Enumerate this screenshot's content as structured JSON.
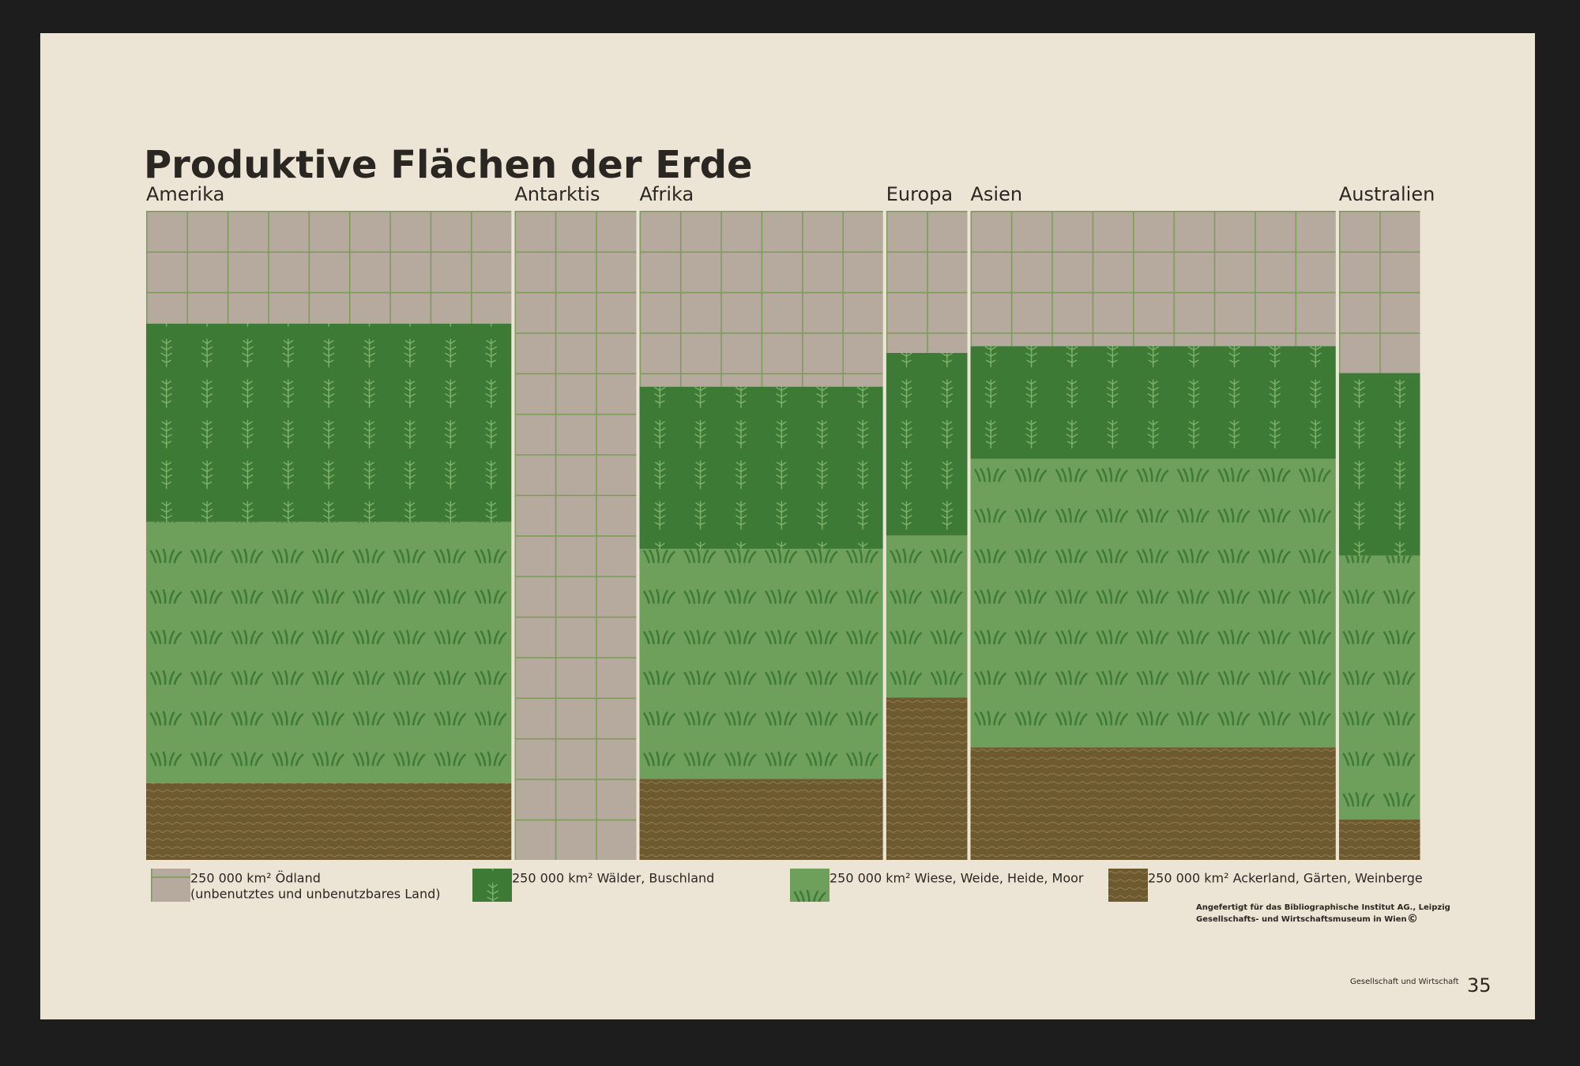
{
  "chart_data": {
    "type": "variwide",
    "title": "Produktive Flächen der Erde",
    "categories": [
      "Amerika",
      "Antarktis",
      "Afrika",
      "Europa",
      "Asien",
      "Australien"
    ],
    "widths": [
      9,
      3,
      6,
      2,
      9,
      2
    ],
    "series": [
      {
        "name": "250 000 km² Ödland",
        "sub": "(unbenutztes und unbenutzbares Land)",
        "color": "#b5aa9d",
        "values": [
          25,
          48,
          26,
          7,
          30,
          8
        ]
      },
      {
        "name": "250 000 km² Wälder, Buschland",
        "color": "#3c7a35",
        "values": [
          44,
          0,
          24,
          9,
          25,
          9
        ]
      },
      {
        "name": "250 000 km² Wiese, Weide, Heide, Moor",
        "color": "#6fa05b",
        "values": [
          58,
          0,
          34,
          8,
          64,
          13
        ]
      },
      {
        "name": "250 000 km² Ackerland, Gärten, Weinberge",
        "color": "#6e5a2f",
        "values": [
          17,
          0,
          12,
          8,
          25,
          2
        ]
      }
    ],
    "credit": [
      "Angefertigt für das Bibliographische Institut AG., Leipzig",
      "Gesellschafts- und Wirtschaftsmuseum in Wien"
    ],
    "copyright": "©",
    "footer": "Gesellschaft und Wirtschaft",
    "page": "35"
  }
}
